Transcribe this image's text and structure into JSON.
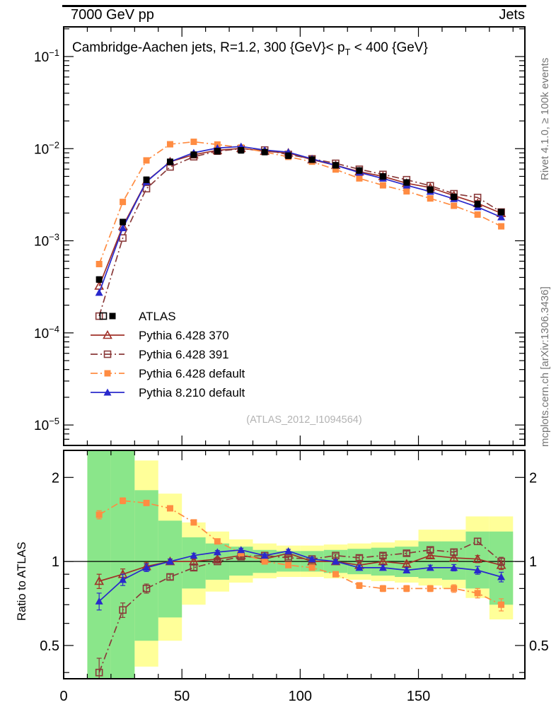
{
  "header": {
    "left": "7000 GeV pp",
    "right": "Jets"
  },
  "title": {
    "pre": "Cambridge-Aachen jets, R=1.2, 300 {GeV}< p",
    "sub": "T",
    "post": " < 400 {GeV}"
  },
  "side_texts": {
    "rivet": "Rivet 4.1.0, ≥ 100k events",
    "mcplots": "mcplots.cern.ch [arXiv:1306.3436]"
  },
  "watermark": "(ATLAS_2012_I1094564)",
  "chart_data": {
    "type": "line",
    "x": [
      15,
      25,
      35,
      45,
      55,
      65,
      75,
      85,
      95,
      105,
      115,
      125,
      135,
      145,
      155,
      165,
      175,
      185
    ],
    "xlim": [
      0,
      195
    ],
    "xticks": [
      0,
      50,
      100,
      150
    ],
    "main_panel": {
      "yscale": "log",
      "ylim": [
        6e-06,
        0.21
      ],
      "ytick_exponents": [
        -1,
        -2,
        -3,
        -4,
        -5
      ]
    },
    "ratio_panel": {
      "yscale": "log",
      "ylim": [
        0.38,
        2.5
      ],
      "yticks": [
        0.5,
        1,
        2
      ],
      "ylabel": "Ratio to ATLAS"
    },
    "atlas": {
      "label": "ATLAS",
      "color": "#000000",
      "marker": "square-filled",
      "values": [
        0.00038,
        0.0016,
        0.0046,
        0.0072,
        0.0086,
        0.0094,
        0.0096,
        0.0092,
        0.0084,
        0.0076,
        0.0066,
        0.0058,
        0.005,
        0.0043,
        0.0036,
        0.003,
        0.0025,
        0.00205
      ]
    },
    "series": [
      {
        "key": "pythia-6428-370",
        "label": "Pythia 6.428 370",
        "color": "#a03028",
        "line": "solid",
        "marker": "triangle-open",
        "ratio_to_atlas": [
          0.85,
          0.9,
          0.96,
          1.0,
          1.0,
          1.02,
          1.05,
          1.02,
          1.07,
          1.0,
          1.0,
          0.97,
          1.0,
          0.98,
          1.05,
          1.03,
          1.02,
          0.97
        ]
      },
      {
        "key": "pythia-6428-391",
        "label": "Pythia 6.428 391",
        "color": "#8a3a3a",
        "line": "dashdot",
        "marker": "square-open",
        "ratio_to_atlas": [
          0.4,
          0.67,
          0.8,
          0.88,
          0.95,
          1.0,
          1.04,
          1.05,
          1.03,
          1.02,
          1.05,
          1.03,
          1.05,
          1.07,
          1.1,
          1.08,
          1.18,
          1.0
        ]
      },
      {
        "key": "pythia-6428-default",
        "label": "Pythia 6.428 default",
        "color": "#ff8c42",
        "line": "dashdot",
        "marker": "square-filled",
        "ratio_to_atlas": [
          1.47,
          1.65,
          1.62,
          1.55,
          1.38,
          1.18,
          1.07,
          1.0,
          0.97,
          0.95,
          0.9,
          0.82,
          0.8,
          0.8,
          0.8,
          0.8,
          0.77,
          0.7
        ]
      },
      {
        "key": "pythia-8210-default",
        "label": "Pythia 8.210 default",
        "color": "#2929cc",
        "line": "solid",
        "marker": "triangle-filled",
        "ratio_to_atlas": [
          0.72,
          0.86,
          0.95,
          1.0,
          1.05,
          1.08,
          1.1,
          1.05,
          1.09,
          1.02,
          1.0,
          0.95,
          0.95,
          0.93,
          0.95,
          0.95,
          0.93,
          0.88
        ]
      }
    ],
    "ratio_point_errors": [
      0.05,
      0.04,
      0.03,
      0.02,
      0.02,
      0.015,
      0.015,
      0.015,
      0.015,
      0.015,
      0.015,
      0.02,
      0.02,
      0.02,
      0.02,
      0.025,
      0.03,
      0.035
    ],
    "bands": {
      "colors": {
        "outer": "#ffff99",
        "inner": "#8ae68a"
      },
      "outer_lo": [
        0.3,
        0.3,
        0.42,
        0.52,
        0.7,
        0.78,
        0.84,
        0.87,
        0.88,
        0.88,
        0.87,
        0.86,
        0.85,
        0.84,
        0.82,
        0.8,
        0.74,
        0.62
      ],
      "outer_hi": [
        2.6,
        2.6,
        2.3,
        1.75,
        1.38,
        1.28,
        1.2,
        1.16,
        1.14,
        1.14,
        1.15,
        1.16,
        1.17,
        1.19,
        1.3,
        1.3,
        1.45,
        1.45
      ],
      "inner_lo": [
        0.32,
        0.32,
        0.52,
        0.63,
        0.8,
        0.86,
        0.89,
        0.91,
        0.92,
        0.92,
        0.91,
        0.9,
        0.89,
        0.88,
        0.87,
        0.86,
        0.8,
        0.7
      ],
      "inner_hi": [
        2.55,
        2.55,
        1.8,
        1.4,
        1.22,
        1.16,
        1.13,
        1.1,
        1.09,
        1.09,
        1.1,
        1.11,
        1.12,
        1.13,
        1.18,
        1.18,
        1.28,
        1.28
      ]
    }
  }
}
